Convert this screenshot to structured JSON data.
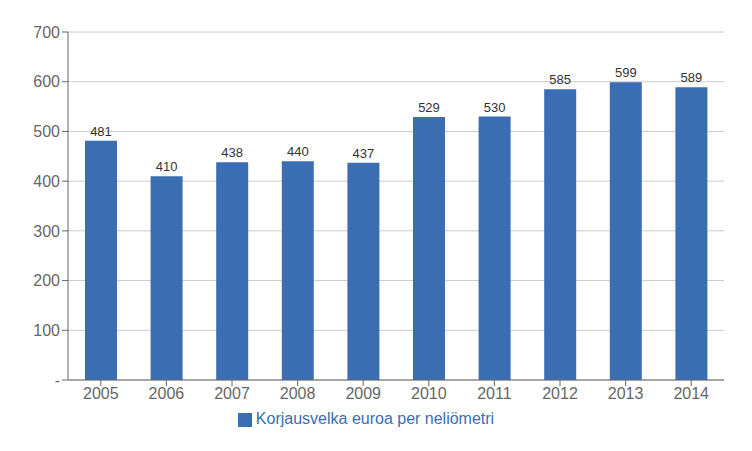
{
  "chart_data": {
    "type": "bar",
    "categories": [
      "2005",
      "2006",
      "2007",
      "2008",
      "2009",
      "2010",
      "2011",
      "2012",
      "2013",
      "2014"
    ],
    "series": [
      {
        "name": "Korjausvelka euroa per neliömetri",
        "color": "#3B6DB3",
        "values": [
          481,
          410,
          438,
          440,
          437,
          529,
          530,
          585,
          599,
          589
        ]
      }
    ],
    "ylim": [
      0,
      700
    ],
    "yticks": [
      {
        "value": 0,
        "label": "-"
      },
      100,
      200,
      300,
      400,
      500,
      600,
      700
    ],
    "grid": true,
    "legend": "bottom",
    "data_labels": true
  }
}
